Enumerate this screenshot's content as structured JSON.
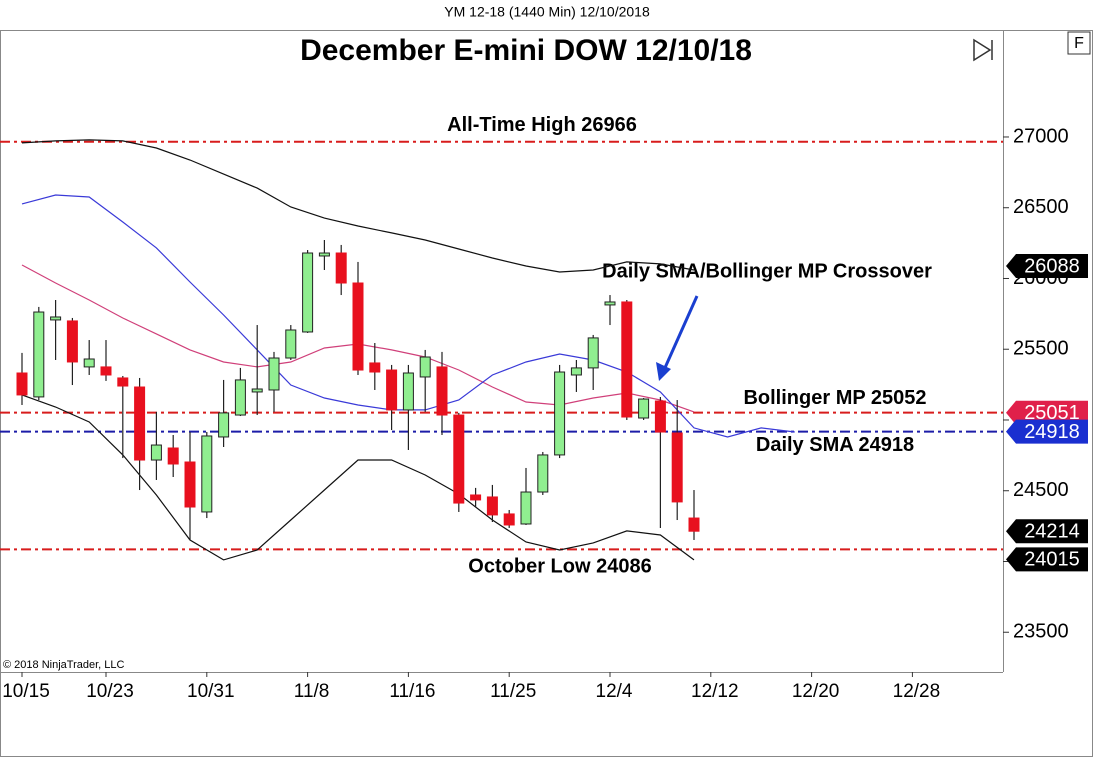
{
  "chart_data": {
    "type": "candlestick",
    "header": "YM 12-18 (1440 Min)  12/10/2018",
    "title": "December E-mini DOW 12/10/18",
    "copyright": "© 2018 NinjaTrader, LLC",
    "button": "F",
    "annotation": "Daily SMA/Bollinger MP Crossover",
    "categories": [
      "10/15",
      null,
      null,
      null,
      null,
      "10/23",
      null,
      null,
      null,
      null,
      null,
      "10/31",
      null,
      null,
      null,
      null,
      null,
      "11/8",
      null,
      null,
      null,
      null,
      null,
      "11/16",
      null,
      null,
      null,
      null,
      null,
      "11/25",
      null,
      null,
      null,
      null,
      null,
      "12/4",
      null,
      null,
      null,
      null,
      null,
      "12/12",
      null,
      null,
      null,
      null,
      null,
      "12/20",
      null,
      null,
      null,
      null,
      null,
      "12/28",
      null,
      null,
      null,
      null,
      null
    ],
    "open": [
      25332,
      25163,
      25707,
      25700,
      25375,
      25375,
      25297,
      25233,
      24717,
      24802,
      24703,
      24350,
      24880,
      25035,
      25198,
      25212,
      25438,
      25622,
      26159,
      26180,
      25968,
      25403,
      25353,
      25071,
      25304,
      25375,
      25035,
      24470,
      24456,
      24336,
      24265,
      24491,
      24753,
      25318,
      25368,
      25813,
      25834,
      25014,
      25134,
      24908,
      24307,
      null,
      null,
      null,
      null,
      null,
      null,
      null,
      null,
      null,
      null,
      null,
      null,
      null,
      null,
      null,
      null,
      null,
      null
    ],
    "high": [
      25474,
      25799,
      25848,
      25721,
      25565,
      25565,
      25311,
      25297,
      25057,
      24894,
      24915,
      24915,
      25283,
      25368,
      25671,
      25481,
      25671,
      26201,
      26272,
      26237,
      26117,
      25544,
      25389,
      25389,
      25495,
      25481,
      25050,
      24520,
      24541,
      24364,
      24661,
      24774,
      25389,
      25424,
      25601,
      25883,
      25848,
      25155,
      25162,
      25141,
      24505,
      null,
      null,
      null,
      null,
      null,
      null,
      null,
      null,
      null,
      null,
      null,
      null,
      null,
      null,
      null,
      null,
      null,
      null
    ],
    "low": [
      25106,
      25141,
      25424,
      25247,
      25318,
      25276,
      24731,
      24505,
      24576,
      24597,
      24152,
      24307,
      24809,
      25028,
      25035,
      25057,
      25424,
      25615,
      26060,
      25883,
      25318,
      25212,
      24929,
      24788,
      25057,
      24894,
      24350,
      24385,
      24279,
      24237,
      24258,
      24470,
      24731,
      25198,
      25212,
      25671,
      25000,
      25000,
      24237,
      24293,
      24152,
      null,
      null,
      null,
      null,
      null,
      null,
      null,
      null,
      null,
      null,
      null,
      null,
      null,
      null,
      null,
      null,
      null,
      null
    ],
    "close": [
      25177,
      25763,
      25728,
      25410,
      25431,
      25318,
      25240,
      24717,
      24823,
      24689,
      24385,
      24887,
      25050,
      25283,
      25219,
      25438,
      25636,
      26180,
      26180,
      25968,
      25353,
      25339,
      25071,
      25332,
      25445,
      25035,
      24413,
      24435,
      24329,
      24258,
      24491,
      24753,
      25339,
      25368,
      25580,
      25834,
      25021,
      25148,
      24915,
      24421,
      24214,
      null,
      null,
      null,
      null,
      null,
      null,
      null,
      null,
      null,
      null,
      null,
      null,
      null,
      null,
      null,
      null,
      null,
      null
    ],
    "up_color": "#90ee90",
    "down_color": "#e8101e",
    "ylim": [
      23219,
      27756
    ],
    "yticks": [
      23500,
      24000,
      24500,
      25000,
      25500,
      26000,
      26500,
      27000
    ],
    "indicators": [
      {
        "color": "#111111",
        "x": [
          0,
          2,
          4,
          6,
          8,
          10,
          12,
          14,
          16,
          18,
          20,
          22,
          24,
          26,
          28,
          30,
          32,
          34,
          36,
          38,
          40
        ],
        "values": [
          26958,
          26972,
          26979,
          26972,
          26922,
          26837,
          26738,
          26639,
          26505,
          26427,
          26371,
          26322,
          26272,
          26208,
          26145,
          26088,
          26046,
          26060,
          26117,
          26103,
          26060
        ]
      },
      {
        "color": "#111111",
        "x": [
          0,
          2,
          4,
          6,
          8,
          10,
          12,
          14,
          16,
          18,
          20,
          22,
          24,
          26,
          28,
          30,
          32,
          34,
          36,
          38,
          40
        ],
        "values": [
          25177,
          25092,
          24986,
          24753,
          24470,
          24152,
          24011,
          24081,
          24293,
          24505,
          24717,
          24717,
          24611,
          24477,
          24293,
          24138,
          24081,
          24131,
          24216,
          24187,
          24011
        ]
      },
      {
        "color": "#d0407a",
        "x": [
          0,
          2,
          4,
          6,
          8,
          10,
          12,
          14,
          16,
          18,
          20,
          22,
          24,
          26,
          28,
          30,
          32,
          34,
          36,
          38,
          40
        ],
        "values": [
          26095,
          25968,
          25848,
          25721,
          25608,
          25495,
          25410,
          25375,
          25410,
          25509,
          25537,
          25495,
          25445,
          25353,
          25233,
          25127,
          25106,
          25155,
          25191,
          25141,
          25057
        ]
      },
      {
        "color": "#3a3ad8",
        "x": [
          0,
          2,
          4,
          6,
          8,
          10,
          12,
          14,
          16,
          18,
          20,
          22,
          24,
          26,
          28,
          30,
          32,
          34,
          36,
          38,
          40,
          42,
          44,
          46
        ],
        "values": [
          26527,
          26590,
          26576,
          26399,
          26216,
          25975,
          25742,
          25495,
          25247,
          25155,
          25106,
          25071,
          25071,
          25141,
          25318,
          25410,
          25466,
          25424,
          25339,
          25198,
          24944,
          24880,
          24944,
          24915
        ]
      }
    ],
    "hlines": [
      {
        "value": 26966,
        "label": "All-Time High 26966",
        "color": "#d81c1c"
      },
      {
        "value": 25052,
        "label": "Bollinger MP 25052",
        "color": "#d81c1c"
      },
      {
        "value": 24918,
        "label": "Daily SMA 24918",
        "color": "#1c1ca8"
      },
      {
        "value": 24086,
        "label": "October Low 24086",
        "color": "#d81c1c"
      }
    ],
    "price_flags": [
      {
        "value": 26088,
        "color": "#000000"
      },
      {
        "value": 25051,
        "color": "#e0204a"
      },
      {
        "value": 24918,
        "color": "#1a2fd0"
      },
      {
        "value": 24214,
        "color": "#000000"
      },
      {
        "value": 24015,
        "color": "#000000"
      }
    ]
  }
}
